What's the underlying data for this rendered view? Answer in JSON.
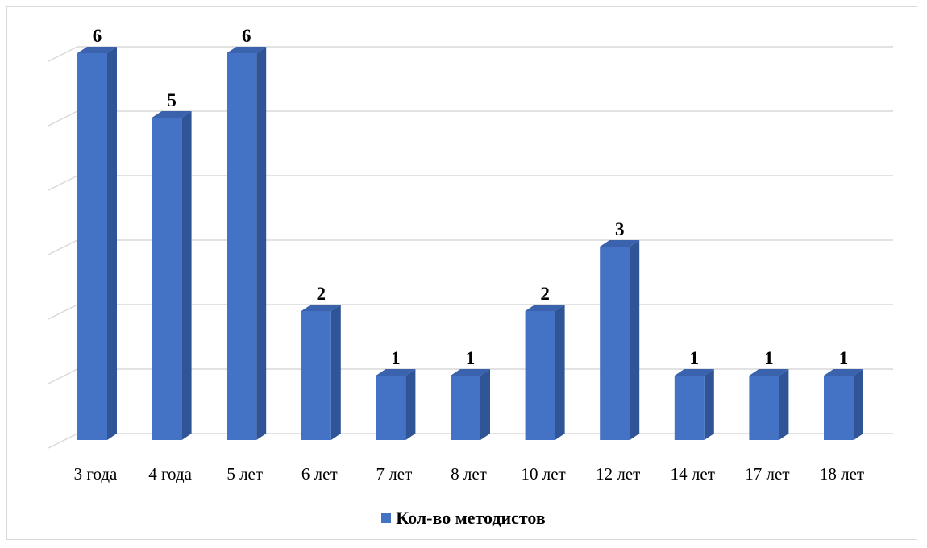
{
  "chart_data": {
    "type": "bar",
    "categories": [
      "3 года",
      "4 года",
      "5 лет",
      "6 лет",
      "7 лет",
      "8 лет",
      "10 лет",
      "12 лет",
      "14 лет",
      "17 лет",
      "18 лет"
    ],
    "series": [
      {
        "name": "Кол-во методистов",
        "values": [
          6,
          5,
          6,
          2,
          1,
          1,
          2,
          3,
          1,
          1,
          1
        ]
      }
    ],
    "ylim": [
      0,
      6
    ],
    "grid": true,
    "y_axis_labels_visible": false,
    "data_labels": true,
    "legend_position": "bottom",
    "style": "3d-column",
    "colors": {
      "bar_front": "#4472c4",
      "bar_side": "#2f5597",
      "bar_top": "#3a62ad",
      "grid": "#d9d9d9"
    }
  }
}
